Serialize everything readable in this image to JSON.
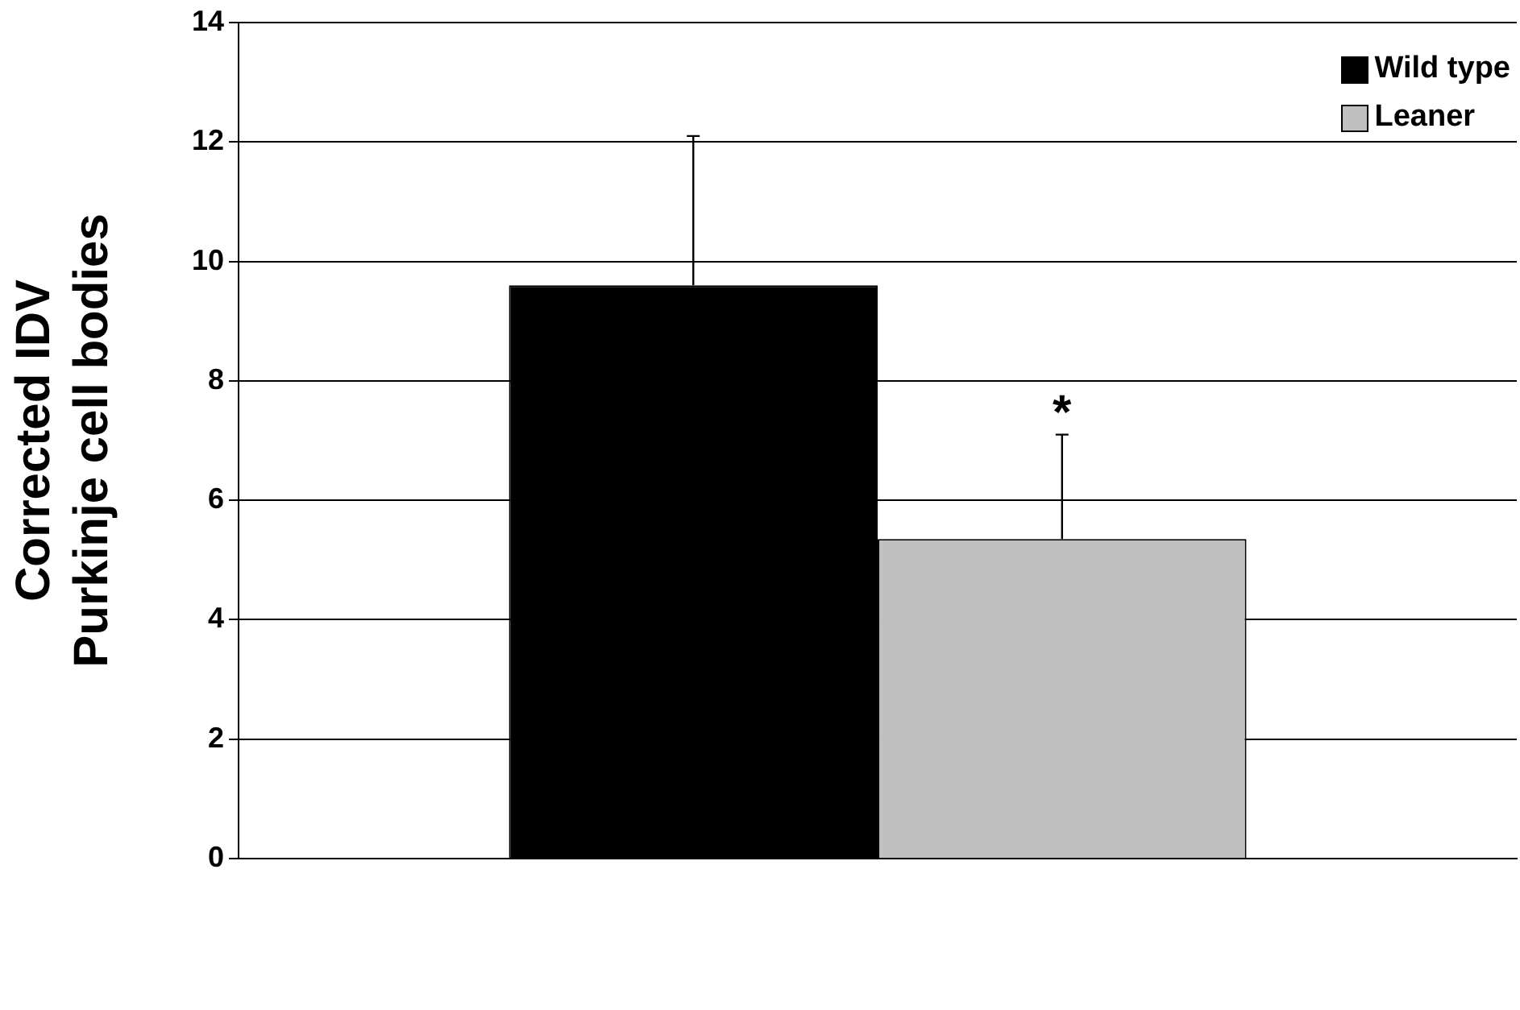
{
  "chart_data": {
    "type": "bar",
    "ylabel": "Corrected IDV\nPurkinje cell bodies",
    "categories": [
      null
    ],
    "series": [
      {
        "name": "Wild type",
        "color": "#000000",
        "values": [
          9.6
        ],
        "errors": [
          [
            9.6,
            12.1
          ]
        ]
      },
      {
        "name": "Leaner",
        "color": "#c0c0c0",
        "values": [
          5.35
        ],
        "errors": [
          [
            5.35,
            7.1
          ]
        ]
      }
    ],
    "annotations": [
      "*"
    ],
    "ylim": [
      0,
      14
    ],
    "yticks": [
      0,
      2,
      4,
      6,
      8,
      10,
      12,
      14
    ],
    "grid": "y",
    "legend": "top right"
  }
}
